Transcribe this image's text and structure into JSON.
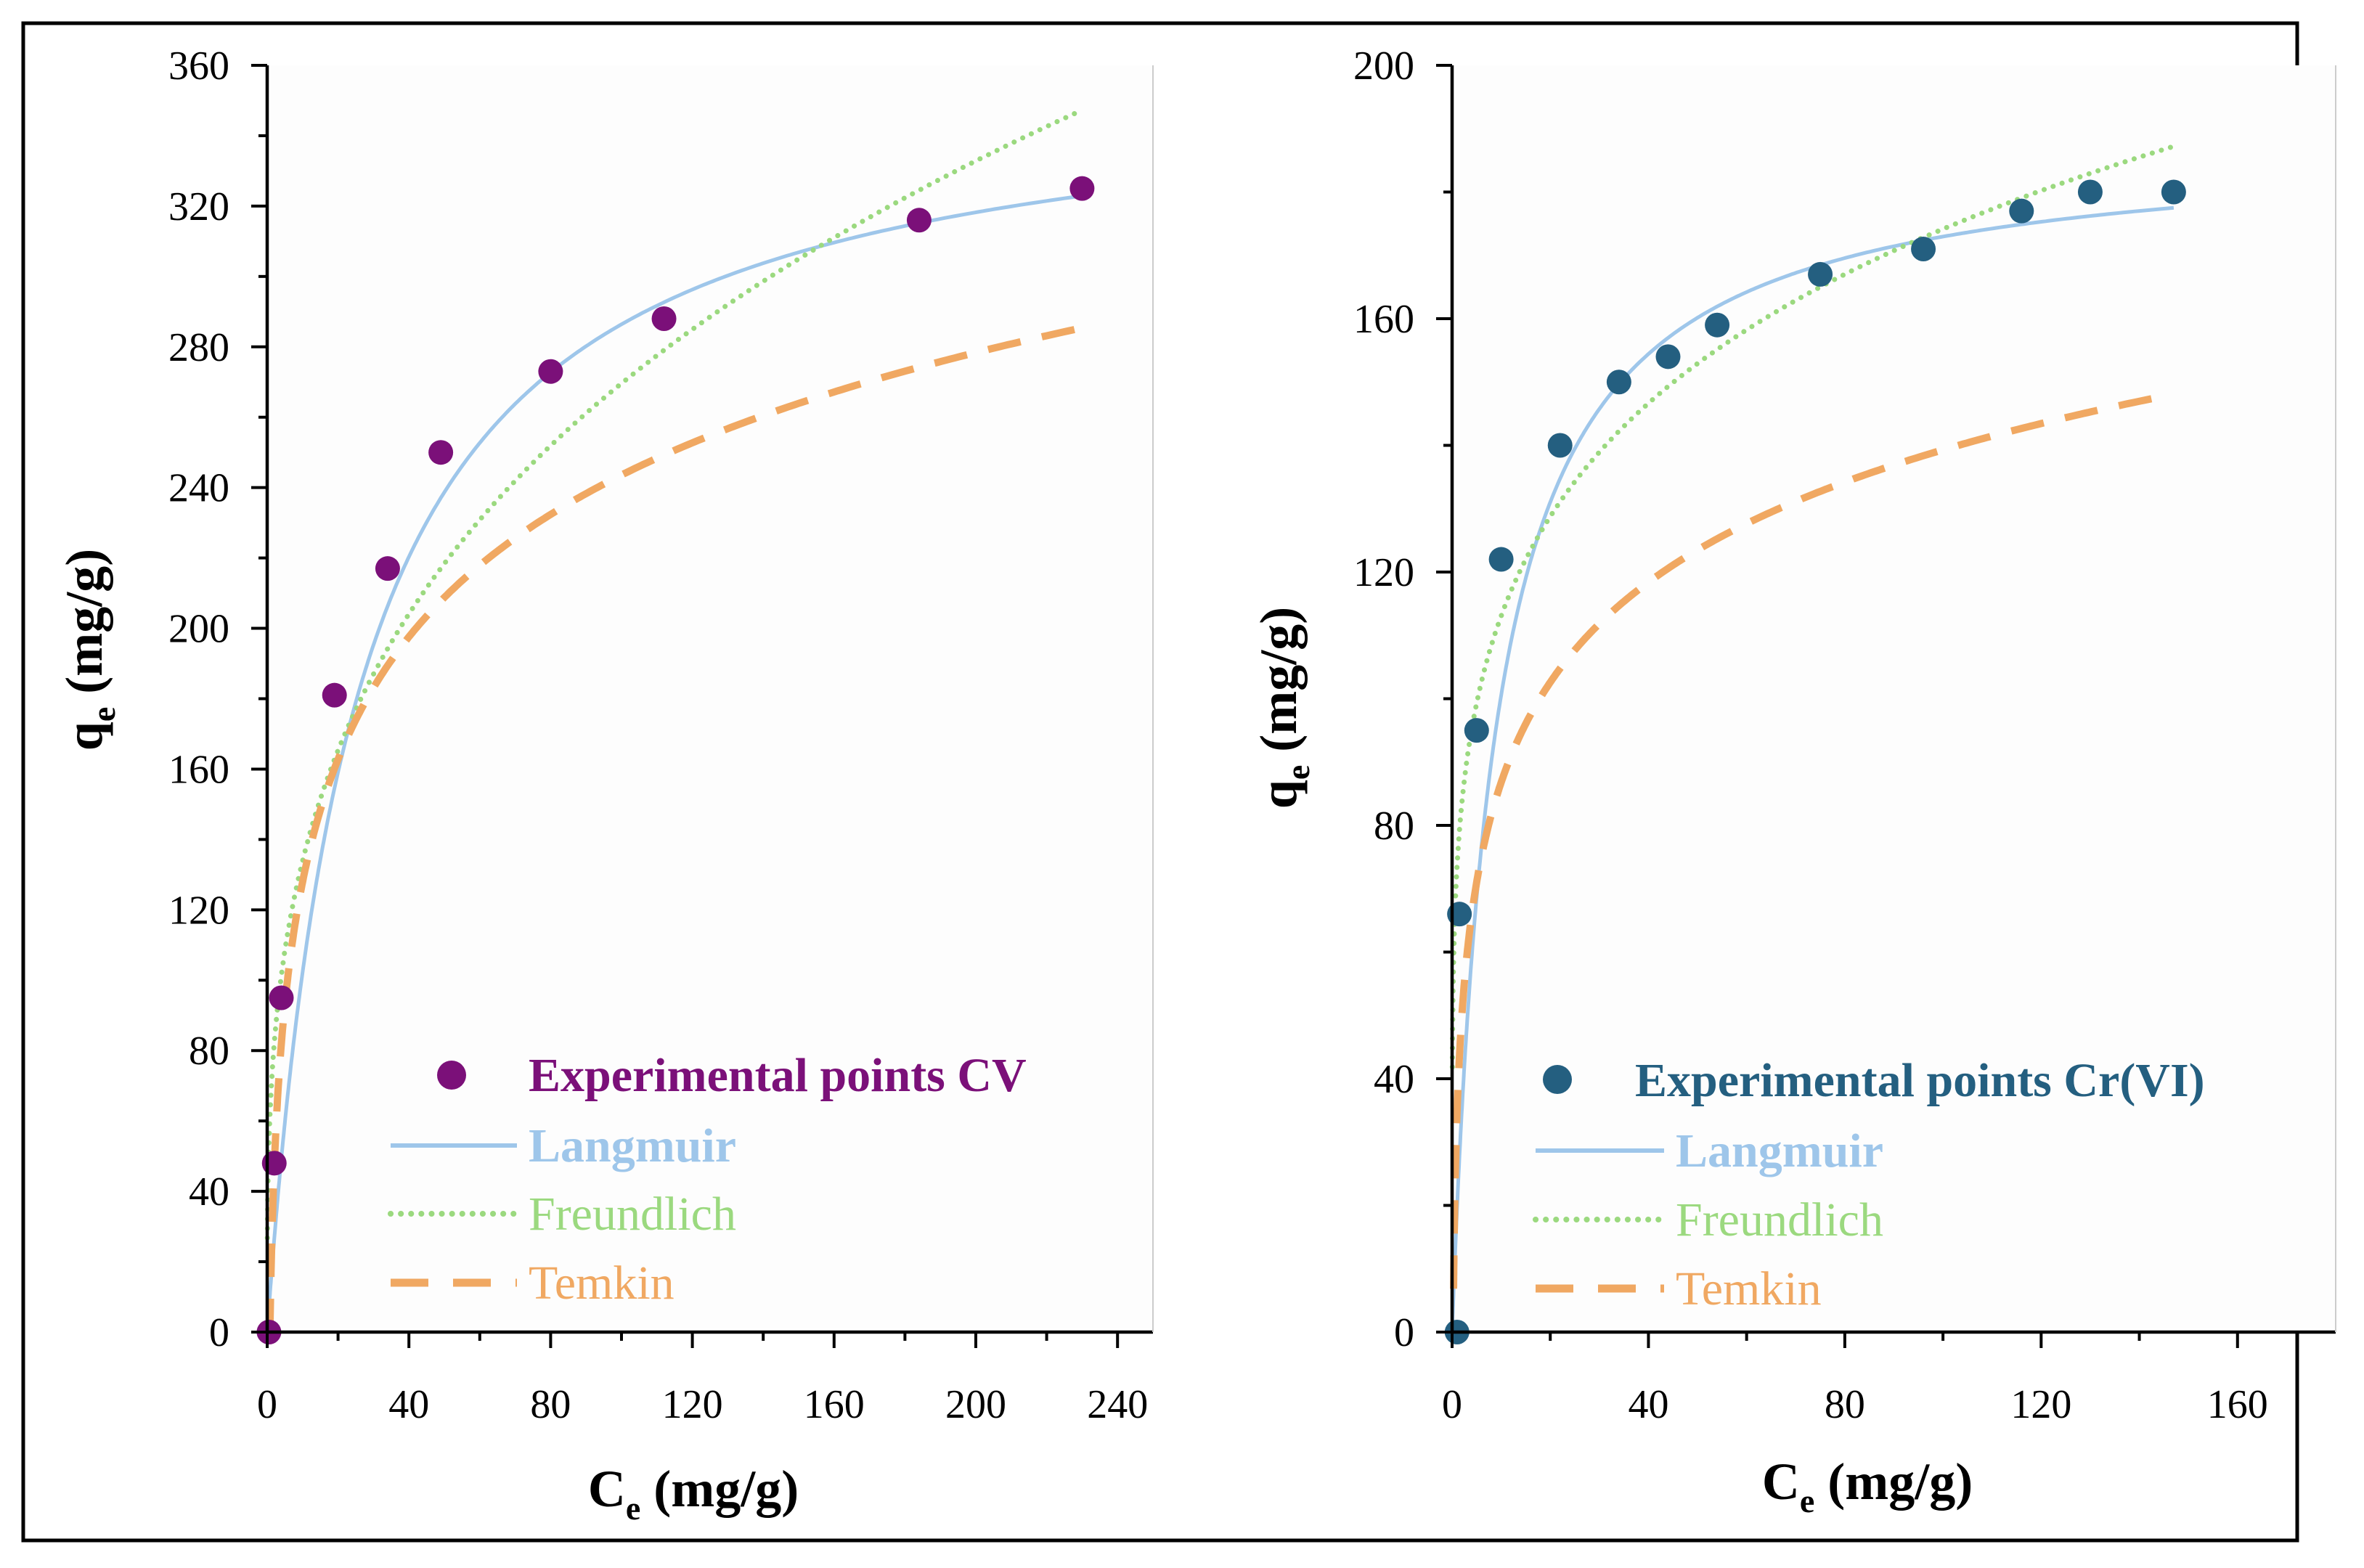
{
  "chart_data": [
    {
      "type": "scatter",
      "title": "",
      "xlabel": "Ce (mg/g)",
      "ylabel": "qe (mg/g)",
      "xlabel_parts": {
        "main": "C",
        "sub": "e",
        "rest": " (mg/g)"
      },
      "ylabel_parts": {
        "main": "q",
        "sub": "e",
        "rest": " (mg/g)"
      },
      "xlim": [
        0,
        250
      ],
      "ylim": [
        0,
        360
      ],
      "xticks": [
        0,
        40,
        80,
        120,
        160,
        200,
        240
      ],
      "yticks": [
        0,
        40,
        80,
        120,
        160,
        200,
        240,
        280,
        320,
        360
      ],
      "xtick_labels": [
        "0",
        "40",
        "80",
        "120",
        "160",
        "200",
        "240"
      ],
      "ytick_labels": [
        "0",
        "40",
        "80",
        "120",
        "160",
        "200",
        "240",
        "280",
        "320",
        "360"
      ],
      "legend_position": "bottom-right",
      "points": {
        "name": "Experimental points CV",
        "color": "#7b1079",
        "x": [
          0.5,
          2,
          4,
          19,
          34,
          49,
          80,
          112,
          184,
          230
        ],
        "y": [
          0,
          48,
          95,
          181,
          217,
          250,
          273,
          288,
          316,
          325
        ]
      },
      "series": [
        {
          "name": "Langmuir",
          "model": "langmuir",
          "color": "#9ec6ea",
          "style": "solid",
          "params": {
            "qm": 358,
            "k": 0.04
          },
          "x_range": [
            0,
            230
          ]
        },
        {
          "name": "Freundlich",
          "model": "freundlich",
          "color": "#9bd97f",
          "style": "dotted",
          "params": {
            "kf": 66.5,
            "n": 3.29
          },
          "x_range": [
            0.05,
            230
          ]
        },
        {
          "name": "Temkin",
          "model": "temkin",
          "color": "#f0a862",
          "style": "dashed",
          "params": {
            "b": 50.2,
            "a": 1.28
          },
          "x_range": [
            0.78,
            230
          ]
        }
      ]
    },
    {
      "type": "scatter",
      "title": "",
      "xlabel": "Ce (mg/g)",
      "ylabel": "qe (mg/g)",
      "xlabel_parts": {
        "main": "C",
        "sub": "e",
        "rest": " (mg/g)"
      },
      "ylabel_parts": {
        "main": "q",
        "sub": "e",
        "rest": " (mg/g)"
      },
      "xlim": [
        0,
        180
      ],
      "ylim": [
        0,
        200
      ],
      "xticks": [
        0,
        40,
        80,
        120,
        160
      ],
      "yticks": [
        0,
        40,
        80,
        120,
        160,
        200
      ],
      "xtick_labels": [
        "0",
        "40",
        "80",
        "120",
        "160"
      ],
      "ytick_labels": [
        "0",
        "40",
        "80",
        "120",
        "160",
        "200"
      ],
      "legend_position": "bottom-right",
      "points": {
        "name": "Experimental points Cr(VI)",
        "color": "#245f80",
        "x": [
          1,
          1.5,
          5,
          10,
          22,
          34,
          44,
          54,
          75,
          96,
          116,
          130,
          147
        ],
        "y": [
          0,
          66,
          95,
          122,
          140,
          150,
          154,
          159,
          167,
          171,
          177,
          180,
          180
        ]
      },
      "series": [
        {
          "name": "Langmuir",
          "model": "langmuir",
          "color": "#9ec6ea",
          "style": "solid",
          "params": {
            "qm": 188,
            "k": 0.115
          },
          "x_range": [
            0,
            147
          ]
        },
        {
          "name": "Freundlich",
          "model": "freundlich",
          "color": "#9bd97f",
          "style": "dotted",
          "params": {
            "kf": 73.4,
            "n": 5.33
          },
          "x_range": [
            0.05,
            147
          ]
        },
        {
          "name": "Temkin",
          "model": "temkin",
          "color": "#f0a862",
          "style": "dashed",
          "params": {
            "b": 22.8,
            "a": 4.5
          },
          "x_range": [
            0.3,
            145
          ]
        }
      ]
    }
  ]
}
